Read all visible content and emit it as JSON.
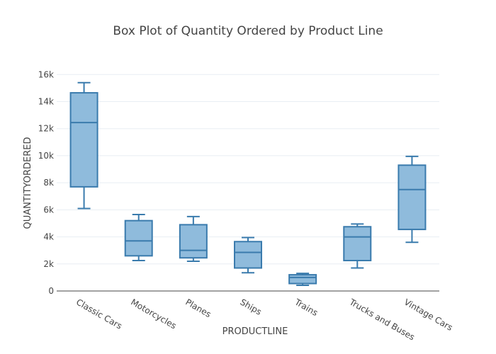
{
  "chart_data": {
    "type": "box",
    "title": "Box Plot of Quantity Ordered by Product Line",
    "xlabel": "PRODUCTLINE",
    "ylabel": "QUANTITYORDERED",
    "categories": [
      "Classic Cars",
      "Motorcycles",
      "Planes",
      "Ships",
      "Trains",
      "Trucks and Buses",
      "Vintage Cars"
    ],
    "boxes": [
      {
        "min": 6100,
        "q1": 7700,
        "median": 12450,
        "q3": 14650,
        "max": 15400
      },
      {
        "min": 2250,
        "q1": 2600,
        "median": 3700,
        "q3": 5200,
        "max": 5650
      },
      {
        "min": 2200,
        "q1": 2450,
        "median": 3000,
        "q3": 4900,
        "max": 5500
      },
      {
        "min": 1350,
        "q1": 1700,
        "median": 2850,
        "q3": 3650,
        "max": 3950
      },
      {
        "min": 420,
        "q1": 550,
        "median": 1000,
        "q3": 1200,
        "max": 1300
      },
      {
        "min": 1700,
        "q1": 2250,
        "median": 4000,
        "q3": 4750,
        "max": 4950
      },
      {
        "min": 3600,
        "q1": 4550,
        "median": 7500,
        "q3": 9300,
        "max": 9950
      }
    ],
    "ylim": [
      0,
      16800
    ],
    "y_ticks": [
      0,
      2000,
      4000,
      6000,
      8000,
      10000,
      12000,
      14000,
      16000
    ],
    "y_tick_labels": [
      "0",
      "2k",
      "4k",
      "6k",
      "8k",
      "10k",
      "12k",
      "14k",
      "16k"
    ],
    "grid": true,
    "colors": {
      "box_fill": "#8fbbdc",
      "box_stroke": "#3a7bad",
      "grid": "#e8eef3",
      "axis": "#444444"
    }
  }
}
